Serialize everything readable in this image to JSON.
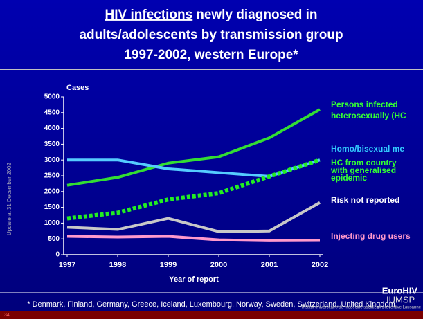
{
  "chart_data": {
    "type": "line",
    "title_lines": [
      "HIV infections",
      "newly diagnosed in",
      "adults/adolescents by transmission group",
      "1997-2002, western Europe*"
    ],
    "y_label": "Cases",
    "x_label": "Year of report",
    "side_note": "Update at 31 December 2002",
    "footnote": "* Denmark, Finland, Germany, Greece, Iceland, Luxembourg, Norway, Sweden, Switzerland, United Kingdom",
    "logo": "EuroHIV",
    "logo2": "IUMSP",
    "logo2_sub": "Institut universitaire de médecine sociale et préventive Lausanne",
    "slide_number": "34",
    "categories": [
      "1997",
      "1998",
      "1999",
      "2000",
      "2001",
      "2002"
    ],
    "ylim": [
      0,
      5000
    ],
    "yticks": [
      0,
      500,
      1000,
      1500,
      2000,
      2500,
      3000,
      3500,
      4000,
      4500,
      5000
    ],
    "series": [
      {
        "name": "Persons infected\nheterosexually (HC",
        "color": "#33dd33",
        "label_color": "#33ff33",
        "values": [
          2200,
          2450,
          2900,
          3100,
          3700,
          4600
        ]
      },
      {
        "name": "Homo/bisexual me",
        "color": "#55ccff",
        "label_color": "#33ccff",
        "values": [
          3000,
          3000,
          2720,
          2600,
          2480,
          3000
        ]
      },
      {
        "name": "HC from country\nwith generalised\nepidemic",
        "color": "#22ee22",
        "label_color": "#33ff33",
        "dashed": true,
        "values": [
          1150,
          1330,
          1750,
          1950,
          2480,
          3000
        ]
      },
      {
        "name": "Risk not reported",
        "color": "#c8c8c8",
        "label_color": "#ffffff",
        "values": [
          870,
          800,
          1150,
          730,
          750,
          1650
        ]
      },
      {
        "name": "Injecting drug users",
        "color": "#ff99cc",
        "label_color": "#ff99cc",
        "values": [
          580,
          560,
          580,
          470,
          440,
          450
        ]
      }
    ]
  }
}
